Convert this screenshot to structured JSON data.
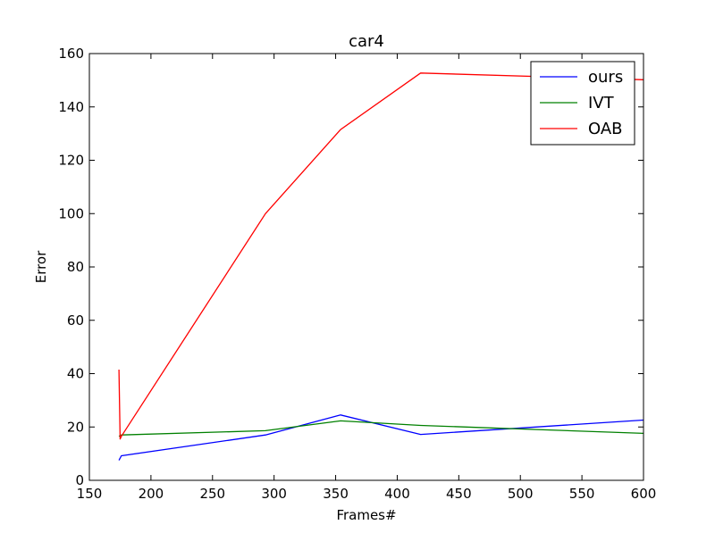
{
  "chart_data": {
    "type": "line",
    "title": "car4",
    "xlabel": "Frames#",
    "ylabel": "Error",
    "xlim": [
      150,
      600
    ],
    "ylim": [
      0,
      160
    ],
    "xticks": [
      150,
      200,
      250,
      300,
      350,
      400,
      450,
      500,
      550,
      600
    ],
    "yticks": [
      0,
      20,
      40,
      60,
      80,
      100,
      120,
      140,
      160
    ],
    "grid": false,
    "legend_position": "top-right",
    "series": [
      {
        "name": "ours",
        "color": "#0000ff",
        "x": [
          174,
          176,
          293,
          354,
          419,
          600
        ],
        "y": [
          7.5,
          9.2,
          17.0,
          24.5,
          17.2,
          22.6
        ]
      },
      {
        "name": "IVT",
        "color": "#008000",
        "x": [
          174,
          176,
          293,
          354,
          419,
          600
        ],
        "y": [
          16.5,
          17.0,
          18.6,
          22.3,
          20.6,
          17.6
        ]
      },
      {
        "name": "OAB",
        "color": "#ff0000",
        "x": [
          174,
          175,
          176,
          293,
          354,
          419,
          600
        ],
        "y": [
          41.5,
          15.5,
          16.5,
          100.0,
          131.5,
          152.7,
          150.2
        ]
      }
    ]
  }
}
